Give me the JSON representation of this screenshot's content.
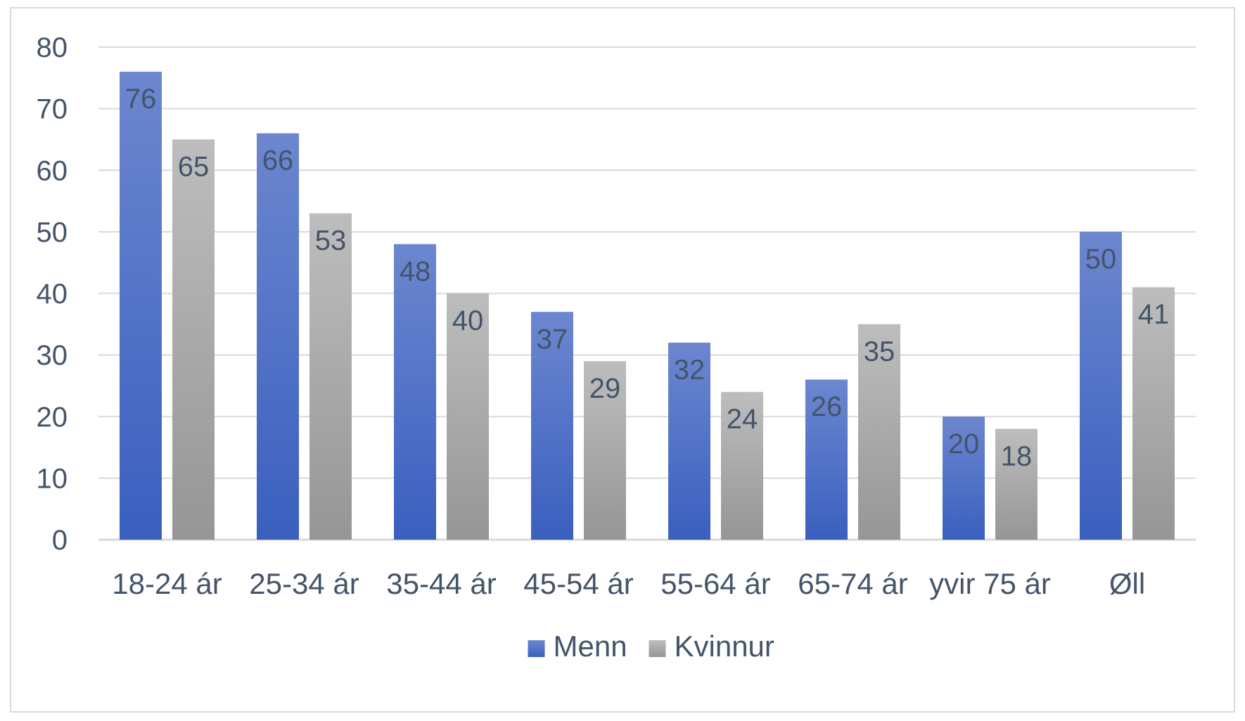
{
  "chart_data": {
    "type": "bar",
    "title": "",
    "xlabel": "",
    "ylabel": "",
    "categories": [
      "18-24 ár",
      "25-34 ár",
      "35-44 ár",
      "45-54 ár",
      "55-64 ár",
      "65-74 ár",
      "yvir 75 ár",
      "Øll"
    ],
    "series": [
      {
        "name": "Menn",
        "values": [
          76,
          66,
          48,
          37,
          32,
          26,
          20,
          50
        ],
        "color_top": "#6c87cf",
        "color_bottom": "#3a5fbf"
      },
      {
        "name": "Kvinnur",
        "values": [
          65,
          53,
          40,
          29,
          24,
          35,
          18,
          41
        ],
        "color_top": "#bdbdbd",
        "color_bottom": "#969696"
      }
    ],
    "ylim": [
      0,
      80
    ],
    "yticks": [
      0,
      10,
      20,
      30,
      40,
      50,
      60,
      70,
      80
    ],
    "grid": true,
    "legend": "bottom-center",
    "data_labels": "inside-end",
    "colors": {
      "grid": "#d9d9d9",
      "axis": "#d9d9d9",
      "text": "#44546a"
    }
  }
}
